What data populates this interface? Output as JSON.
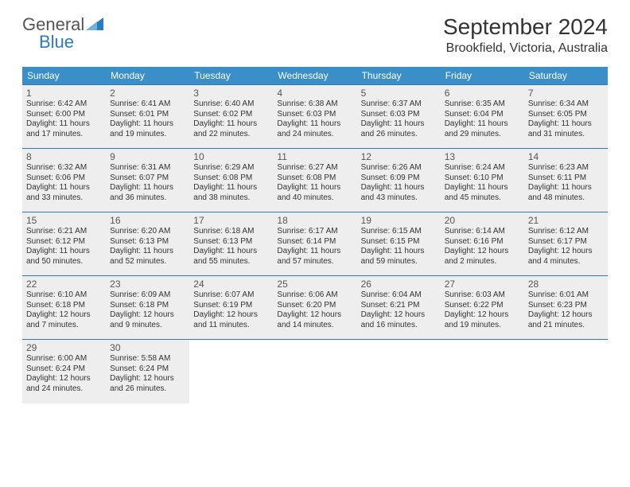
{
  "brand": {
    "part1": "General",
    "part2": "Blue"
  },
  "title": "September 2024",
  "location": "Brookfield, Victoria, Australia",
  "colors": {
    "header_bg": "#3b8fc9",
    "header_text": "#ffffff",
    "border": "#2a7cc0",
    "cell_bg": "#eeeeee",
    "logo_accent": "#2a7cc0",
    "text": "#333333"
  },
  "weekdays": [
    "Sunday",
    "Monday",
    "Tuesday",
    "Wednesday",
    "Thursday",
    "Friday",
    "Saturday"
  ],
  "weeks": [
    [
      {
        "n": "1",
        "sr": "6:42 AM",
        "ss": "6:00 PM",
        "dl": "11 hours and 17 minutes."
      },
      {
        "n": "2",
        "sr": "6:41 AM",
        "ss": "6:01 PM",
        "dl": "11 hours and 19 minutes."
      },
      {
        "n": "3",
        "sr": "6:40 AM",
        "ss": "6:02 PM",
        "dl": "11 hours and 22 minutes."
      },
      {
        "n": "4",
        "sr": "6:38 AM",
        "ss": "6:03 PM",
        "dl": "11 hours and 24 minutes."
      },
      {
        "n": "5",
        "sr": "6:37 AM",
        "ss": "6:03 PM",
        "dl": "11 hours and 26 minutes."
      },
      {
        "n": "6",
        "sr": "6:35 AM",
        "ss": "6:04 PM",
        "dl": "11 hours and 29 minutes."
      },
      {
        "n": "7",
        "sr": "6:34 AM",
        "ss": "6:05 PM",
        "dl": "11 hours and 31 minutes."
      }
    ],
    [
      {
        "n": "8",
        "sr": "6:32 AM",
        "ss": "6:06 PM",
        "dl": "11 hours and 33 minutes."
      },
      {
        "n": "9",
        "sr": "6:31 AM",
        "ss": "6:07 PM",
        "dl": "11 hours and 36 minutes."
      },
      {
        "n": "10",
        "sr": "6:29 AM",
        "ss": "6:08 PM",
        "dl": "11 hours and 38 minutes."
      },
      {
        "n": "11",
        "sr": "6:27 AM",
        "ss": "6:08 PM",
        "dl": "11 hours and 40 minutes."
      },
      {
        "n": "12",
        "sr": "6:26 AM",
        "ss": "6:09 PM",
        "dl": "11 hours and 43 minutes."
      },
      {
        "n": "13",
        "sr": "6:24 AM",
        "ss": "6:10 PM",
        "dl": "11 hours and 45 minutes."
      },
      {
        "n": "14",
        "sr": "6:23 AM",
        "ss": "6:11 PM",
        "dl": "11 hours and 48 minutes."
      }
    ],
    [
      {
        "n": "15",
        "sr": "6:21 AM",
        "ss": "6:12 PM",
        "dl": "11 hours and 50 minutes."
      },
      {
        "n": "16",
        "sr": "6:20 AM",
        "ss": "6:13 PM",
        "dl": "11 hours and 52 minutes."
      },
      {
        "n": "17",
        "sr": "6:18 AM",
        "ss": "6:13 PM",
        "dl": "11 hours and 55 minutes."
      },
      {
        "n": "18",
        "sr": "6:17 AM",
        "ss": "6:14 PM",
        "dl": "11 hours and 57 minutes."
      },
      {
        "n": "19",
        "sr": "6:15 AM",
        "ss": "6:15 PM",
        "dl": "11 hours and 59 minutes."
      },
      {
        "n": "20",
        "sr": "6:14 AM",
        "ss": "6:16 PM",
        "dl": "12 hours and 2 minutes."
      },
      {
        "n": "21",
        "sr": "6:12 AM",
        "ss": "6:17 PM",
        "dl": "12 hours and 4 minutes."
      }
    ],
    [
      {
        "n": "22",
        "sr": "6:10 AM",
        "ss": "6:18 PM",
        "dl": "12 hours and 7 minutes."
      },
      {
        "n": "23",
        "sr": "6:09 AM",
        "ss": "6:18 PM",
        "dl": "12 hours and 9 minutes."
      },
      {
        "n": "24",
        "sr": "6:07 AM",
        "ss": "6:19 PM",
        "dl": "12 hours and 11 minutes."
      },
      {
        "n": "25",
        "sr": "6:06 AM",
        "ss": "6:20 PM",
        "dl": "12 hours and 14 minutes."
      },
      {
        "n": "26",
        "sr": "6:04 AM",
        "ss": "6:21 PM",
        "dl": "12 hours and 16 minutes."
      },
      {
        "n": "27",
        "sr": "6:03 AM",
        "ss": "6:22 PM",
        "dl": "12 hours and 19 minutes."
      },
      {
        "n": "28",
        "sr": "6:01 AM",
        "ss": "6:23 PM",
        "dl": "12 hours and 21 minutes."
      }
    ],
    [
      {
        "n": "29",
        "sr": "6:00 AM",
        "ss": "6:24 PM",
        "dl": "12 hours and 24 minutes."
      },
      {
        "n": "30",
        "sr": "5:58 AM",
        "ss": "6:24 PM",
        "dl": "12 hours and 26 minutes."
      },
      null,
      null,
      null,
      null,
      null
    ]
  ],
  "labels": {
    "sunrise": "Sunrise:",
    "sunset": "Sunset:",
    "daylight": "Daylight:"
  }
}
